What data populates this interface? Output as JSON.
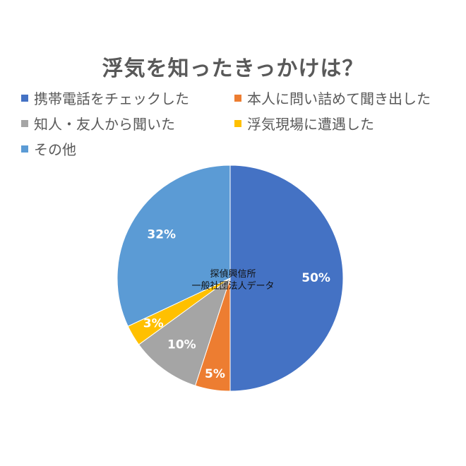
{
  "chart_data": {
    "type": "pie",
    "title": "浮気を知ったきっかけは？",
    "categories": [
      "携帯電話をチェックした",
      "本人に問い詰めて聞き出した",
      "知人・友人から聞いた",
      "浮気現場に遭遇した",
      "その他"
    ],
    "values": [
      50,
      5,
      10,
      3,
      32
    ],
    "value_labels": [
      "50%",
      "5%",
      "10%",
      "3%",
      "32%"
    ],
    "colors": [
      "#4472C4",
      "#ED7D31",
      "#A5A5A5",
      "#FFC000",
      "#5B9BD5"
    ],
    "legend_position": "top",
    "annotation": [
      "探偵興信所",
      "一般社団法人データ"
    ]
  }
}
